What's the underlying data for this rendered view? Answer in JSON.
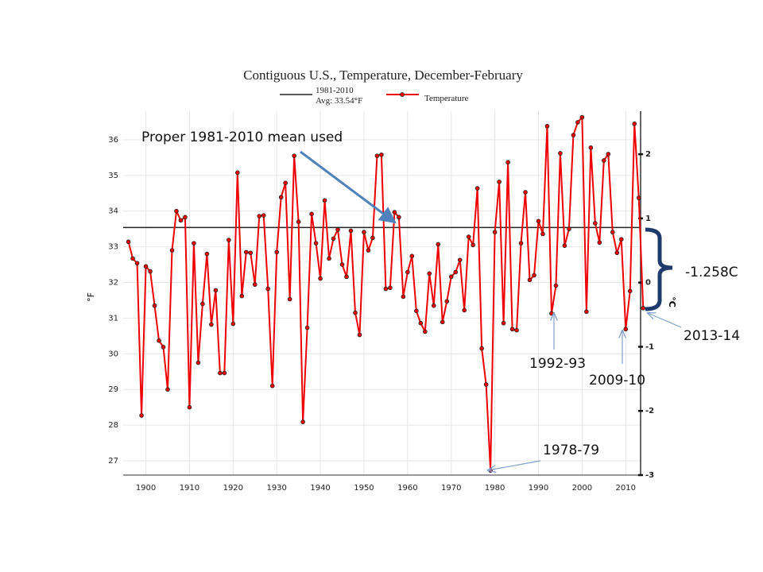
{
  "chart_data": {
    "type": "line",
    "title": "Contiguous U.S., Temperature, December-February",
    "y_label": "°F",
    "y2_label": "°C",
    "mean_line": {
      "value": 33.54,
      "color": "#222222",
      "label_lines": [
        "1981-2010",
        "Avg: 33.54°F"
      ]
    },
    "x": [
      1896,
      1897,
      1898,
      1899,
      1900,
      1901,
      1902,
      1903,
      1904,
      1905,
      1906,
      1907,
      1908,
      1909,
      1910,
      1911,
      1912,
      1913,
      1914,
      1915,
      1916,
      1917,
      1918,
      1919,
      1920,
      1921,
      1922,
      1923,
      1924,
      1925,
      1926,
      1927,
      1928,
      1929,
      1930,
      1931,
      1932,
      1933,
      1934,
      1935,
      1936,
      1937,
      1938,
      1939,
      1940,
      1941,
      1942,
      1943,
      1944,
      1945,
      1946,
      1947,
      1948,
      1949,
      1950,
      1951,
      1952,
      1953,
      1954,
      1955,
      1956,
      1957,
      1958,
      1959,
      1960,
      1961,
      1962,
      1963,
      1964,
      1965,
      1966,
      1967,
      1968,
      1969,
      1970,
      1971,
      1972,
      1973,
      1974,
      1975,
      1976,
      1977,
      1978,
      1979,
      1980,
      1981,
      1982,
      1983,
      1984,
      1985,
      1986,
      1987,
      1988,
      1989,
      1990,
      1991,
      1992,
      1993,
      1994,
      1995,
      1996,
      1997,
      1998,
      1999,
      2000,
      2001,
      2002,
      2003,
      2004,
      2005,
      2006,
      2007,
      2008,
      2009,
      2010,
      2011,
      2012,
      2013,
      2014
    ],
    "series": [
      {
        "name": "Temperature",
        "color": "#ee0000",
        "values": [
          33.14,
          32.67,
          32.54,
          28.27,
          32.45,
          32.31,
          31.35,
          30.37,
          30.19,
          29.0,
          32.9,
          34.0,
          33.74,
          33.83,
          28.5,
          33.1,
          29.75,
          31.4,
          32.8,
          30.82,
          31.78,
          29.46,
          29.46,
          33.19,
          30.84,
          35.08,
          31.62,
          32.85,
          32.83,
          31.94,
          33.86,
          33.88,
          31.82,
          29.1,
          32.85,
          34.39,
          34.79,
          31.53,
          35.55,
          33.7,
          28.09,
          30.73,
          33.92,
          33.1,
          32.11,
          34.3,
          32.67,
          33.23,
          33.48,
          32.5,
          32.16,
          33.45,
          31.15,
          30.53,
          33.41,
          32.9,
          33.25,
          35.55,
          35.58,
          31.82,
          31.85,
          33.97,
          33.83,
          31.6,
          32.29,
          32.74,
          31.2,
          30.86,
          30.62,
          32.25,
          31.35,
          33.07,
          30.89,
          31.47,
          32.16,
          32.29,
          32.63,
          31.22,
          33.28,
          33.05,
          34.64,
          30.15,
          29.14,
          26.73,
          33.41,
          34.82,
          30.86,
          35.37,
          30.69,
          30.66,
          33.1,
          34.53,
          32.07,
          32.2,
          33.72,
          33.36,
          36.38,
          31.13,
          31.91,
          35.62,
          33.03,
          33.5,
          36.13,
          36.49,
          36.63,
          31.18,
          35.78,
          33.66,
          33.12,
          35.42,
          35.6,
          33.41,
          32.83,
          33.21,
          30.69,
          31.76,
          36.45,
          34.37,
          31.28
        ]
      }
    ],
    "xlim": [
      1894.8,
      2015.6
    ],
    "xticks": [
      1900,
      1910,
      1920,
      1930,
      1940,
      1950,
      1960,
      1970,
      1980,
      1990,
      2000,
      2010
    ],
    "ylim": [
      26.6,
      36.8
    ],
    "yticks": [
      27,
      28,
      29,
      30,
      31,
      32,
      33,
      34,
      35,
      36
    ],
    "y2lim": [
      -3,
      2.67
    ],
    "y2ticks": [
      -3,
      -2,
      -1,
      0,
      1,
      2
    ],
    "grid": true,
    "annotations": [
      "Proper 1981-2010  mean used",
      "1992-93",
      "2009-10",
      "1978-79",
      "2013-14",
      "-1.258C"
    ]
  }
}
